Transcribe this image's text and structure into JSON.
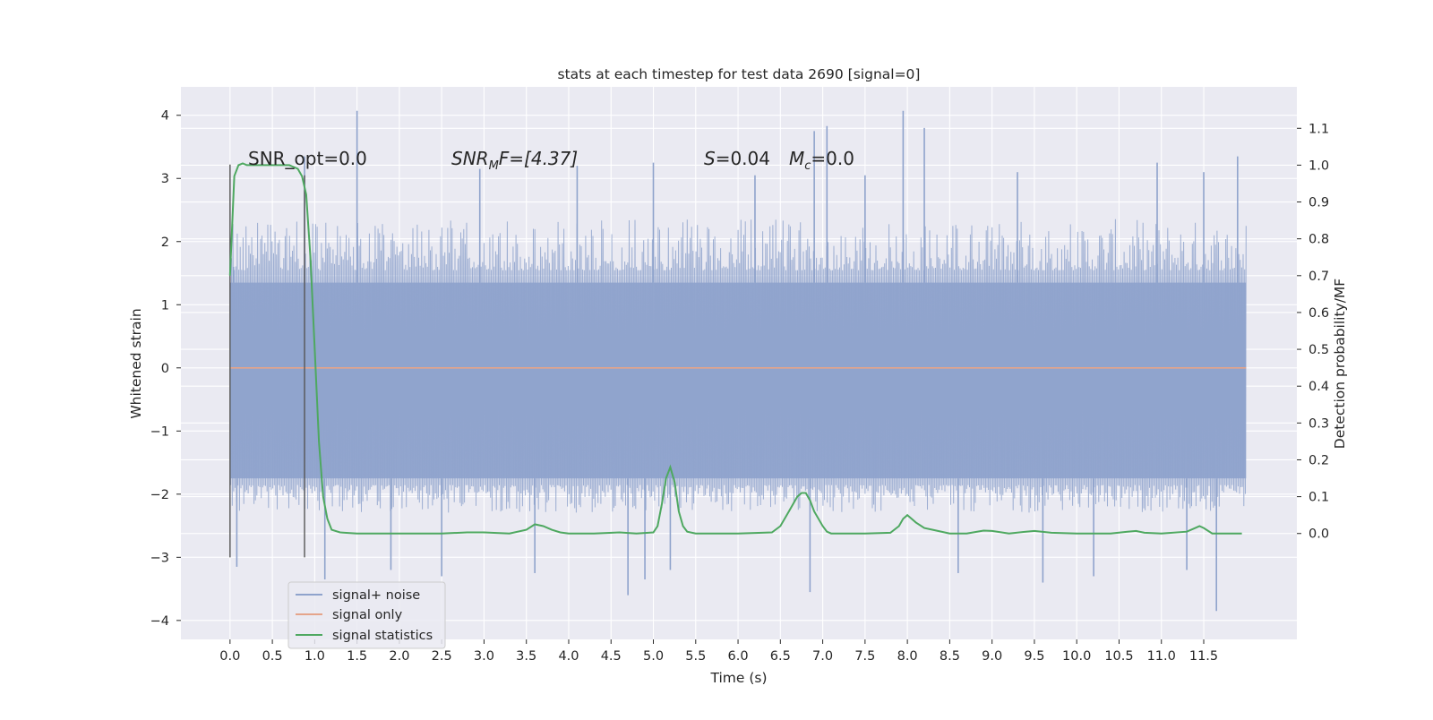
{
  "chart_data": {
    "type": "line",
    "title": "stats at each timestep for test data 2690 [signal=0]",
    "xlabel": "Time (s)",
    "ylabel": "Whitened strain",
    "y2label": "Detection probability/MF",
    "xlim": [
      -0.58,
      12.6
    ],
    "ylim": [
      -4.3,
      4.45
    ],
    "y2lim": [
      -0.2875,
      1.2125
    ],
    "x_ticks": [
      "0.0",
      "0.5",
      "1.0",
      "1.5",
      "2.0",
      "2.5",
      "3.0",
      "3.5",
      "4.0",
      "4.5",
      "5.0",
      "5.5",
      "6.0",
      "6.5",
      "7.0",
      "7.5",
      "8.0",
      "8.5",
      "9.0",
      "9.5",
      "10.0",
      "10.5",
      "11.0",
      "11.5"
    ],
    "y_ticks": [
      "4",
      "3",
      "2",
      "1",
      "0",
      "−1",
      "−2",
      "−3",
      "−4"
    ],
    "y2_ticks": [
      "1.1",
      "1.0",
      "0.9",
      "0.8",
      "0.7",
      "0.6",
      "0.5",
      "0.4",
      "0.3",
      "0.2",
      "0.1",
      "0.0"
    ],
    "grid": true,
    "legend_position": "lower-left",
    "annotations": {
      "snr_opt": "SNR_opt=0.0",
      "snr_mf_prefix": "SNR",
      "snr_mf_sub": "M",
      "snr_mf_suffix": "F=[4.37]",
      "s_sym": "S",
      "s_val": "=0.04",
      "mc_sym": "M",
      "mc_sub": "c",
      "mc_val": "=0.0"
    },
    "series": [
      {
        "name": "signal+ noise",
        "color": "#8fa3cc",
        "x_range": [
          0.0,
          12.0
        ],
        "envelope_y": [
          -2.1,
          2.0
        ],
        "dense_band_y": [
          -1.75,
          1.35
        ],
        "spikes": [
          {
            "x": 0.04,
            "y": 1.6
          },
          {
            "x": 0.08,
            "y": -3.15
          },
          {
            "x": 0.88,
            "y": 3.35
          },
          {
            "x": 1.12,
            "y": -3.35
          },
          {
            "x": 1.5,
            "y": 4.07
          },
          {
            "x": 2.5,
            "y": -3.3
          },
          {
            "x": 4.7,
            "y": -3.6
          },
          {
            "x": 4.9,
            "y": -3.35
          },
          {
            "x": 5.2,
            "y": -3.2
          },
          {
            "x": 6.9,
            "y": 3.75
          },
          {
            "x": 6.85,
            "y": -3.55
          },
          {
            "x": 7.05,
            "y": 3.83
          },
          {
            "x": 7.95,
            "y": 4.07
          },
          {
            "x": 8.2,
            "y": 3.8
          },
          {
            "x": 9.6,
            "y": -3.4
          },
          {
            "x": 11.3,
            "y": -3.2
          },
          {
            "x": 11.65,
            "y": -3.85
          },
          {
            "x": 11.9,
            "y": 3.35
          },
          {
            "x": 11.5,
            "y": 3.1
          },
          {
            "x": 10.95,
            "y": 3.25
          },
          {
            "x": 4.1,
            "y": 3.2
          },
          {
            "x": 2.95,
            "y": 3.15
          },
          {
            "x": 5.0,
            "y": 3.25
          },
          {
            "x": 3.6,
            "y": -3.25
          },
          {
            "x": 10.2,
            "y": -3.3
          },
          {
            "x": 9.3,
            "y": 3.1
          },
          {
            "x": 6.2,
            "y": 3.05
          },
          {
            "x": 8.6,
            "y": -3.25
          },
          {
            "x": 7.5,
            "y": 3.05
          },
          {
            "x": 1.9,
            "y": -3.2
          }
        ]
      },
      {
        "name": "signal only",
        "color": "#e5a48a",
        "x": [
          0.0,
          12.0
        ],
        "y": [
          0.0,
          0.0
        ]
      },
      {
        "name": "signal statistics",
        "color": "#4ea860",
        "axis": "right",
        "x": [
          0.0,
          0.05,
          0.1,
          0.15,
          0.2,
          0.3,
          0.4,
          0.5,
          0.6,
          0.7,
          0.8,
          0.85,
          0.9,
          0.95,
          1.0,
          1.05,
          1.1,
          1.15,
          1.2,
          1.3,
          1.5,
          2.0,
          2.5,
          2.8,
          3.0,
          3.3,
          3.5,
          3.6,
          3.7,
          3.8,
          3.9,
          4.0,
          4.3,
          4.6,
          4.8,
          5.0,
          5.05,
          5.1,
          5.15,
          5.2,
          5.25,
          5.3,
          5.35,
          5.4,
          5.5,
          6.0,
          6.4,
          6.5,
          6.6,
          6.7,
          6.75,
          6.8,
          6.85,
          6.9,
          7.0,
          7.05,
          7.1,
          7.2,
          7.5,
          7.8,
          7.9,
          7.95,
          8.0,
          8.1,
          8.2,
          8.3,
          8.5,
          8.7,
          8.9,
          9.0,
          9.2,
          9.4,
          9.5,
          9.7,
          10.0,
          10.4,
          10.6,
          10.7,
          10.8,
          11.0,
          11.3,
          11.4,
          11.45,
          11.5,
          11.6,
          11.8,
          11.95
        ],
        "y": [
          0.7,
          0.97,
          1.0,
          1.005,
          1.0,
          1.0,
          1.0,
          1.0,
          1.0,
          1.0,
          0.99,
          0.97,
          0.92,
          0.75,
          0.5,
          0.25,
          0.1,
          0.04,
          0.01,
          0.003,
          0.0,
          0.0,
          0.0,
          0.003,
          0.003,
          0.0,
          0.01,
          0.025,
          0.02,
          0.01,
          0.003,
          0.0,
          0.0,
          0.003,
          0.0,
          0.003,
          0.02,
          0.08,
          0.15,
          0.18,
          0.14,
          0.06,
          0.02,
          0.005,
          0.0,
          0.0,
          0.003,
          0.02,
          0.06,
          0.1,
          0.11,
          0.11,
          0.09,
          0.06,
          0.02,
          0.005,
          0.0,
          0.0,
          0.0,
          0.002,
          0.02,
          0.04,
          0.05,
          0.03,
          0.015,
          0.01,
          0.0,
          0.0,
          0.008,
          0.007,
          0.0,
          0.005,
          0.007,
          0.002,
          0.0,
          0.0,
          0.005,
          0.007,
          0.002,
          0.0,
          0.005,
          0.015,
          0.02,
          0.015,
          0.0,
          0.0,
          0.0
        ]
      }
    ],
    "markers": [
      {
        "name": "signal-window-start",
        "x": 0.0,
        "y_range": [
          -3.0,
          3.22
        ],
        "color": "#555555"
      },
      {
        "name": "signal-window-end",
        "x": 0.88,
        "y_range": [
          -3.0,
          3.05
        ],
        "color": "#555555"
      }
    ]
  }
}
